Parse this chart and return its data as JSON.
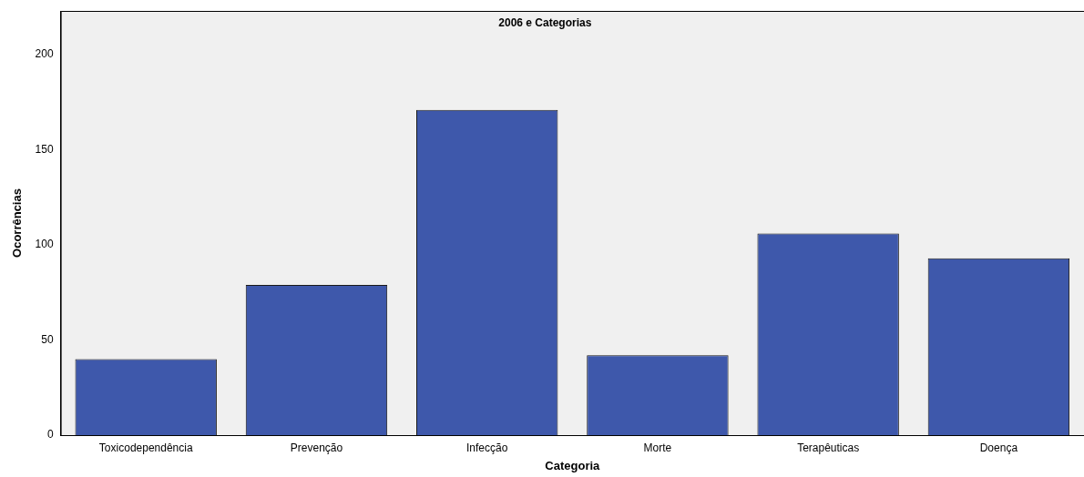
{
  "chart_data": {
    "type": "bar",
    "title": "2006 e Categorias",
    "xlabel": "Categoria",
    "ylabel": "Ocorrências",
    "categories": [
      "Toxicodependência",
      "Prevenção",
      "Infecção",
      "Morte",
      "Terapêuticas",
      "Doença"
    ],
    "values": [
      40,
      79,
      171,
      42,
      106,
      93
    ],
    "color": "#3e58ab",
    "ylim": [
      0,
      223
    ],
    "yticks": [
      0,
      50,
      100,
      150,
      200
    ],
    "grid": false,
    "legend": false
  }
}
